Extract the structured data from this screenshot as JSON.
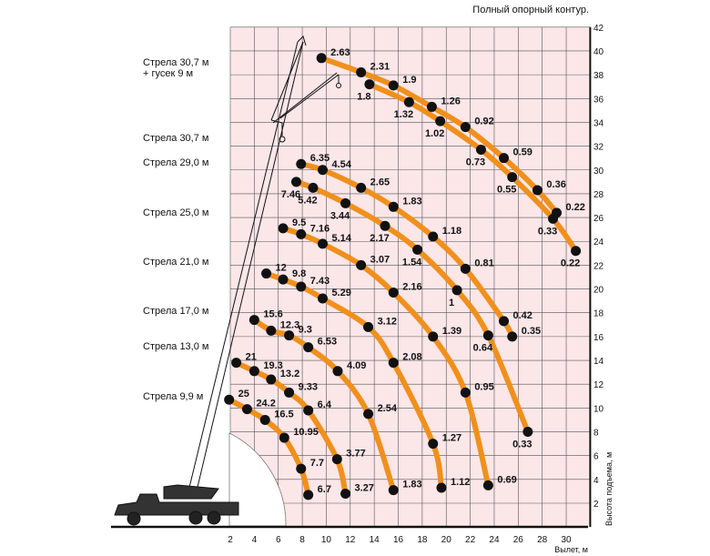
{
  "chart_data": {
    "type": "line",
    "title": "Полный опорный контур.",
    "xlabel": "Вылет, м",
    "ylabel": "Высота подъема, м",
    "xlim": [
      2,
      32
    ],
    "ylim": [
      0,
      42
    ],
    "xticks": [
      2,
      4,
      6,
      8,
      10,
      12,
      14,
      16,
      18,
      20,
      22,
      24,
      26,
      28,
      30
    ],
    "yticks": [
      2,
      4,
      6,
      8,
      10,
      12,
      14,
      16,
      18,
      20,
      22,
      24,
      26,
      28,
      30,
      32,
      34,
      36,
      38,
      40,
      42
    ],
    "grid": true,
    "colors": {
      "curve": "#f0901c",
      "point": "#111111",
      "grid": "#555555",
      "background": "#fbe6e8"
    },
    "boom_labels": [
      [
        "Стрела 30,7 м",
        "+ гусек 9 м"
      ],
      [
        "Стрела 30,7 м"
      ],
      [
        "Стрела 29,0 м"
      ],
      [
        "Стрела 25,0 м"
      ],
      [
        "Стрела 21,0 м"
      ],
      [
        "Стрела 17,0 м"
      ],
      [
        "Стрела 13,0 м"
      ],
      [
        "Стрела 9,9 м"
      ]
    ],
    "series": [
      {
        "name": "Стрела 30,7 м + гусек 9 м (outer)",
        "label_side": "right",
        "points": [
          [
            9.6,
            39.4,
            "2.63"
          ],
          [
            12.9,
            38.2,
            "2.31"
          ],
          [
            15.6,
            37.1,
            "1.9"
          ],
          [
            18.8,
            35.3,
            "1.26"
          ],
          [
            21.6,
            33.6,
            "0.92"
          ],
          [
            24.8,
            31.0,
            "0.59"
          ],
          [
            27.6,
            28.3,
            "0.36"
          ],
          [
            29.2,
            26.4,
            "0.22"
          ]
        ]
      },
      {
        "name": "Стрела 30,7 м + гусек 9 м (inner)",
        "label_side": "below",
        "points": [
          [
            13.6,
            37.2,
            "1.8"
          ],
          [
            16.9,
            35.7,
            "1.32"
          ],
          [
            19.5,
            34.1,
            "1.02"
          ],
          [
            22.9,
            31.7,
            "0.73"
          ],
          [
            25.5,
            29.4,
            "0.55"
          ],
          [
            28.9,
            25.9,
            "0.33"
          ],
          [
            30.8,
            23.2,
            "0.22"
          ]
        ]
      },
      {
        "name": "Стрела 30,7 м",
        "label_side": "right",
        "points": [
          [
            7.9,
            30.5,
            "6.35"
          ],
          [
            9.7,
            30.0,
            "4.54"
          ],
          [
            12.9,
            28.5,
            "2.65"
          ],
          [
            15.6,
            26.9,
            "1.83"
          ],
          [
            18.9,
            24.4,
            "1.18"
          ],
          [
            21.6,
            21.7,
            "0.81"
          ],
          [
            24.8,
            17.3,
            "0.42"
          ],
          [
            25.5,
            16.0,
            "0.35"
          ]
        ]
      },
      {
        "name": "Стрела 29,0 м",
        "label_side": "below",
        "points": [
          [
            7.5,
            29.0,
            "7.46"
          ],
          [
            8.9,
            28.5,
            "5.42"
          ],
          [
            11.6,
            27.2,
            "3.44"
          ],
          [
            14.9,
            25.3,
            "2.17"
          ],
          [
            17.6,
            23.3,
            "1.54"
          ],
          [
            20.9,
            19.9,
            "1"
          ],
          [
            23.5,
            16.1,
            "0.64"
          ],
          [
            26.8,
            8.0,
            "0.33"
          ]
        ]
      },
      {
        "name": "Стрела 25,0 м",
        "label_side": "right",
        "points": [
          [
            6.4,
            25.1,
            "9.5"
          ],
          [
            7.9,
            24.6,
            "7.16"
          ],
          [
            9.7,
            23.8,
            "5.14"
          ],
          [
            12.9,
            22.0,
            "3.07"
          ],
          [
            15.6,
            19.7,
            "2.16"
          ],
          [
            18.9,
            16.0,
            "1.39"
          ],
          [
            21.6,
            11.3,
            "0.95"
          ],
          [
            23.5,
            3.5,
            "0.69"
          ]
        ]
      },
      {
        "name": "Стрела 21,0 м",
        "label_side": "right",
        "points": [
          [
            5.0,
            21.3,
            "12"
          ],
          [
            6.4,
            20.8,
            "9.8"
          ],
          [
            7.9,
            20.2,
            "7.43"
          ],
          [
            9.7,
            19.2,
            "5.29"
          ],
          [
            13.5,
            16.8,
            "3.12"
          ],
          [
            15.6,
            13.8,
            "2.08"
          ],
          [
            18.9,
            7.0,
            "1.27"
          ],
          [
            19.6,
            3.3,
            "1.12"
          ]
        ]
      },
      {
        "name": "Стрела 17,0 м",
        "label_side": "right",
        "points": [
          [
            4.0,
            17.4,
            "15.6"
          ],
          [
            5.4,
            16.5,
            "12.3"
          ],
          [
            6.9,
            16.1,
            "9.3"
          ],
          [
            8.5,
            15.1,
            "6.53"
          ],
          [
            10.95,
            13.1,
            "4.09"
          ],
          [
            13.5,
            9.5,
            "2.54"
          ],
          [
            15.6,
            3.1,
            "1.83"
          ]
        ]
      },
      {
        "name": "Стрела 13,0 м",
        "label_side": "right",
        "points": [
          [
            2.5,
            13.8,
            "21"
          ],
          [
            4.0,
            13.1,
            "19.3"
          ],
          [
            5.4,
            12.4,
            "13.2"
          ],
          [
            6.9,
            11.3,
            "9.33"
          ],
          [
            8.5,
            9.8,
            "6.4"
          ],
          [
            10.9,
            5.7,
            "3.77"
          ],
          [
            11.6,
            2.8,
            "3.27"
          ]
        ]
      },
      {
        "name": "Стрела 9,9 м",
        "label_side": "right",
        "points": [
          [
            1.9,
            10.7,
            "25"
          ],
          [
            3.4,
            9.9,
            "24.2"
          ],
          [
            4.9,
            9.0,
            "16.5"
          ],
          [
            6.5,
            7.5,
            "10.95"
          ],
          [
            7.9,
            4.9,
            "7.7"
          ],
          [
            8.5,
            2.7,
            "6.7"
          ]
        ]
      }
    ]
  }
}
